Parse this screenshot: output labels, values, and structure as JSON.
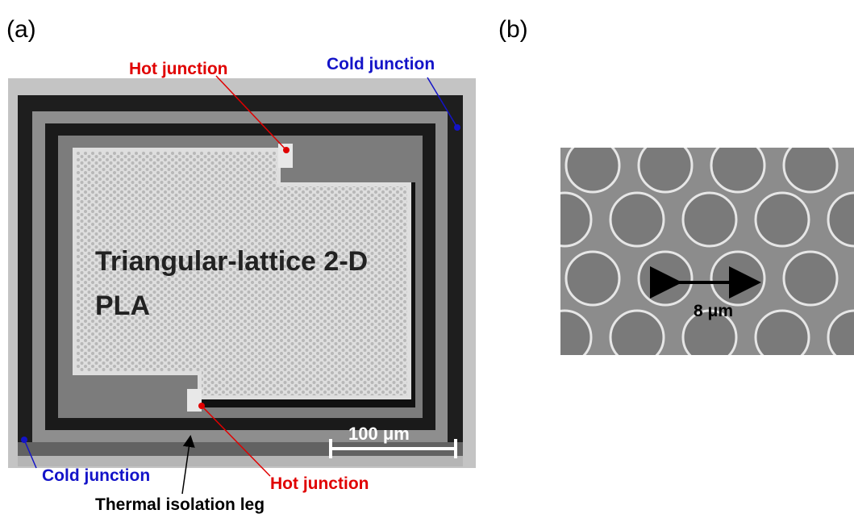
{
  "panel_a": {
    "label": "(a)",
    "hot_junction_top": "Hot junction",
    "cold_junction_top": "Cold junction",
    "device": [
      "Triangular-lattice 2-D",
      "PLA"
    ],
    "scale_bar": "100 μm",
    "cold_junction_bottom": "Cold junction",
    "hot_junction_bottom": "Hot junction",
    "leg": "Thermal isolation leg"
  },
  "panel_b": {
    "label": "(b)",
    "scale_bar": "8 μm"
  }
}
